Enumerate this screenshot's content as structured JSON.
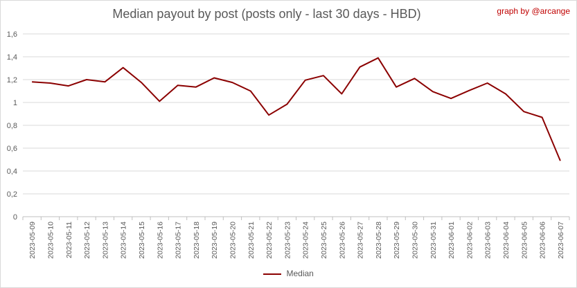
{
  "chart_data": {
    "type": "line",
    "title": "Median payout by post (posts only - last 30 days - HBD)",
    "credit": "graph by @arcange",
    "xlabel": "",
    "ylabel": "",
    "ylim": [
      0,
      1.6
    ],
    "yticks": [
      "0",
      "0,2",
      "0,4",
      "0,6",
      "0,8",
      "1",
      "1,2",
      "1,4",
      "1,6"
    ],
    "grid": true,
    "legend_position": "bottom",
    "categories": [
      "2023-05-09",
      "2023-05-10",
      "2023-05-11",
      "2023-05-12",
      "2023-05-13",
      "2023-05-14",
      "2023-05-15",
      "2023-05-16",
      "2023-05-17",
      "2023-05-18",
      "2023-05-19",
      "2023-05-20",
      "2023-05-21",
      "2023-05-22",
      "2023-05-23",
      "2023-05-24",
      "2023-05-25",
      "2023-05-26",
      "2023-05-27",
      "2023-05-28",
      "2023-05-29",
      "2023-05-30",
      "2023-05-31",
      "2023-06-01",
      "2023-06-02",
      "2023-06-03",
      "2023-06-04",
      "2023-06-05",
      "2023-06-06",
      "2023-06-07"
    ],
    "series": [
      {
        "name": "Median",
        "color": "#8b0000",
        "values": [
          1.18,
          1.17,
          1.145,
          1.2,
          1.18,
          1.305,
          1.175,
          1.01,
          1.15,
          1.135,
          1.215,
          1.175,
          1.1,
          0.89,
          0.985,
          1.195,
          1.235,
          1.075,
          1.31,
          1.39,
          1.135,
          1.21,
          1.095,
          1.035,
          1.105,
          1.17,
          1.075,
          0.92,
          0.87,
          0.49
        ]
      }
    ]
  }
}
